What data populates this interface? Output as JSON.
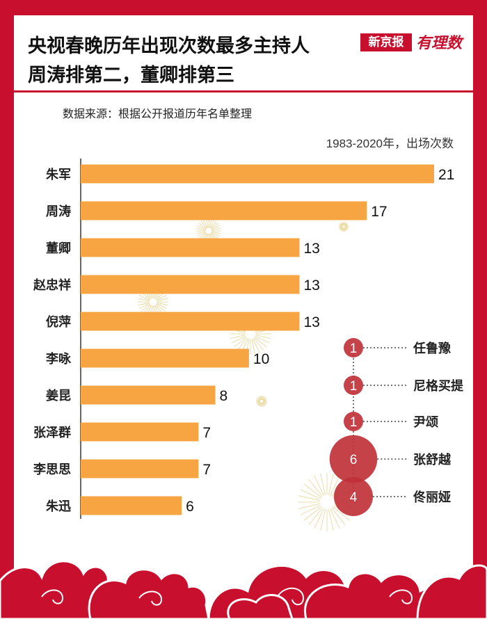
{
  "header": {
    "title_line1": "央视春晚历年出现次数最多主持人",
    "title_line2": "周涛排第二，董卿排第三",
    "logo_xjb": "新京报",
    "logo_yls": "有理数"
  },
  "source": "数据来源：根据公开报道历年名单整理",
  "colors": {
    "bar": "#f7a543",
    "bubble": "#c0323a",
    "frame": "#c8102e"
  },
  "chart_data": [
    {
      "type": "bar",
      "orientation": "horizontal",
      "unit_label": "1983-2020年，出场次数",
      "categories": [
        "朱军",
        "周涛",
        "董卿",
        "赵忠祥",
        "倪萍",
        "李咏",
        "姜昆",
        "张泽群",
        "李思思",
        "朱迅"
      ],
      "values": [
        21,
        17,
        13,
        13,
        13,
        10,
        8,
        7,
        7,
        6
      ],
      "xlim": [
        0,
        21
      ],
      "grid": false
    },
    {
      "type": "bubble",
      "categories": [
        "任鲁豫",
        "尼格买提",
        "尹颂",
        "张舒越",
        "佟丽娅"
      ],
      "values": [
        1,
        1,
        1,
        6,
        4
      ]
    }
  ]
}
